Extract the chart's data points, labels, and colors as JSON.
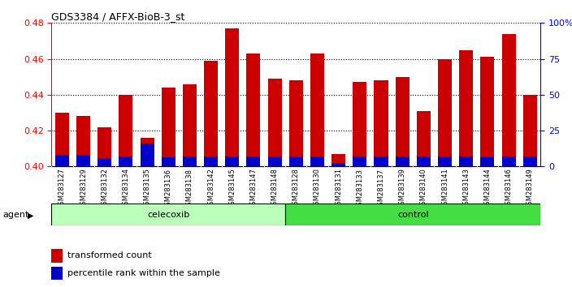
{
  "title": "GDS3384 / AFFX-BioB-3_st",
  "samples": [
    "GSM283127",
    "GSM283129",
    "GSM283132",
    "GSM283134",
    "GSM283135",
    "GSM283136",
    "GSM283138",
    "GSM283142",
    "GSM283145",
    "GSM283147",
    "GSM283148",
    "GSM283128",
    "GSM283130",
    "GSM283131",
    "GSM283133",
    "GSM283137",
    "GSM283139",
    "GSM283140",
    "GSM283141",
    "GSM283143",
    "GSM283144",
    "GSM283146",
    "GSM283149"
  ],
  "red_values": [
    0.43,
    0.428,
    0.422,
    0.44,
    0.416,
    0.444,
    0.446,
    0.459,
    0.477,
    0.463,
    0.449,
    0.448,
    0.463,
    0.407,
    0.447,
    0.448,
    0.45,
    0.431,
    0.46,
    0.465,
    0.461,
    0.474,
    0.44
  ],
  "blue_values": [
    0.4065,
    0.4065,
    0.4045,
    0.4055,
    0.413,
    0.405,
    0.4055,
    0.4055,
    0.4055,
    0.4055,
    0.4055,
    0.4055,
    0.4055,
    0.402,
    0.4055,
    0.4055,
    0.4055,
    0.4055,
    0.4055,
    0.4055,
    0.405,
    0.4055,
    0.4055
  ],
  "celecoxib_count": 11,
  "control_count": 12,
  "ylim_left": [
    0.4,
    0.48
  ],
  "ylim_right": [
    0,
    100
  ],
  "yticks_left": [
    0.4,
    0.42,
    0.44,
    0.46,
    0.48
  ],
  "yticks_right": [
    0,
    25,
    50,
    75,
    100
  ],
  "ytick_labels_right": [
    "0",
    "25",
    "50",
    "75",
    "100%"
  ],
  "bar_bottom": 0.4,
  "red_color": "#cc0000",
  "blue_color": "#0000cc",
  "bg_color": "#ffffff",
  "xtick_bg_color": "#d8d8d8",
  "celecoxib_color": "#bbffbb",
  "control_color": "#44dd44",
  "agent_label": "agent",
  "celecoxib_label": "celecoxib",
  "control_label": "control",
  "legend_red_label": "transformed count",
  "legend_blue_label": "percentile rank within the sample"
}
